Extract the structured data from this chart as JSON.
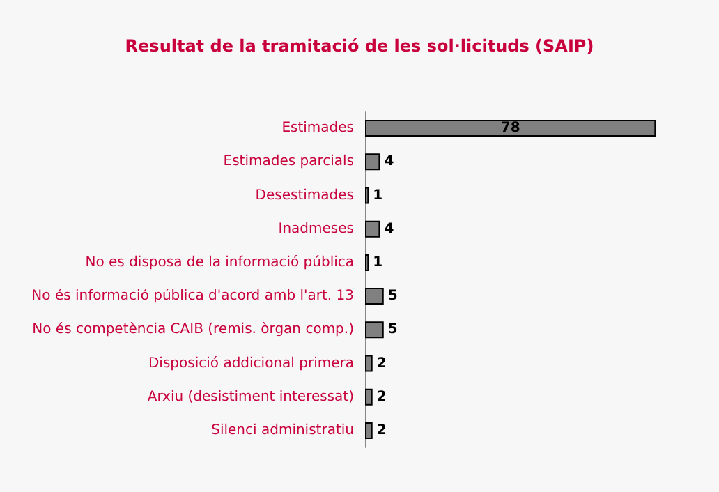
{
  "chart_data": {
    "type": "bar",
    "orientation": "horizontal",
    "title": "Resultat de la tramitació de les sol·licituds (SAIP)",
    "categories": [
      "Estimades",
      "Estimades parcials",
      "Desestimades",
      "Inadmeses",
      "No es disposa de la informació pública",
      "No és informació pública d'acord amb l'art. 13",
      "No és competència CAIB (remis. òrgan comp.)",
      "Disposició addicional primera",
      "Arxiu (desistiment interessat)",
      "Silenci administratiu"
    ],
    "values": [
      78,
      4,
      1,
      4,
      1,
      5,
      5,
      2,
      2,
      2
    ],
    "color": "#808080",
    "data_labels": true,
    "grid": false
  }
}
